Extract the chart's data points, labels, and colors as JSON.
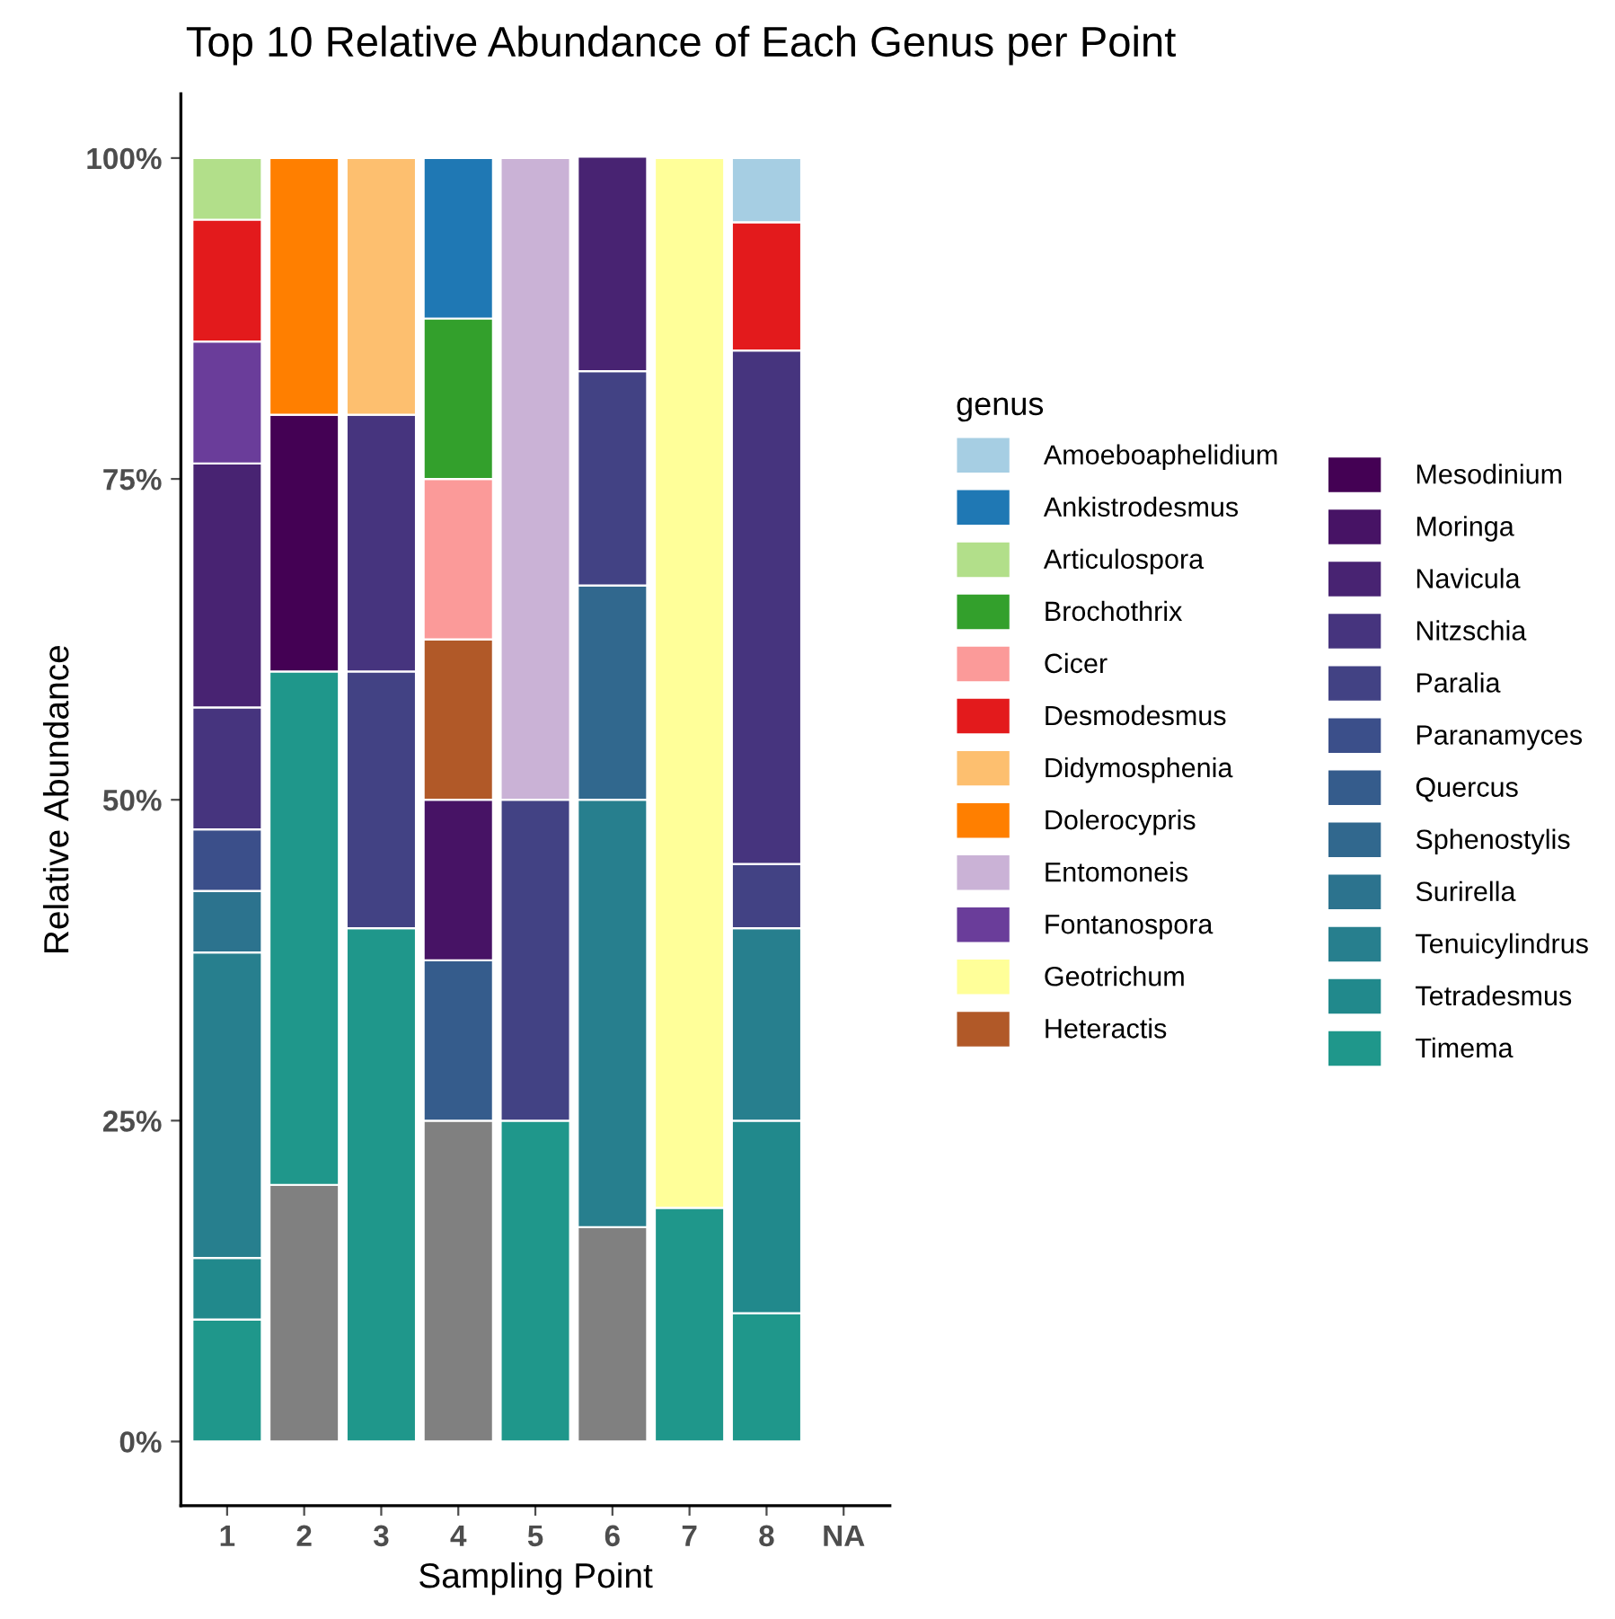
{
  "chart_data": {
    "type": "bar",
    "stacked": true,
    "title": "Top 10 Relative Abundance of Each Genus per Point",
    "xlabel": "Sampling Point",
    "ylabel": "Relative Abundance",
    "legend_title": "genus",
    "legend": "right",
    "grid": false,
    "categories": [
      "1",
      "2",
      "3",
      "4",
      "5",
      "6",
      "7",
      "8",
      "NA"
    ],
    "ylim": [
      -5,
      105
    ],
    "yticks": [
      {
        "value": 0,
        "label": "0%"
      },
      {
        "value": 25,
        "label": "25%"
      },
      {
        "value": 50,
        "label": "50%"
      },
      {
        "value": 75,
        "label": "75%"
      },
      {
        "value": 100,
        "label": "100%"
      }
    ],
    "series": [
      {
        "color": "#808080",
        "values": [
          null,
          20,
          null,
          25,
          null,
          16.7,
          null,
          null,
          null
        ]
      },
      {
        "name": "Timema",
        "color": "#1f978b",
        "values": [
          9.5,
          40,
          40,
          null,
          25,
          null,
          18.2,
          10,
          null
        ]
      },
      {
        "name": "Tetradesmus",
        "color": "#21898c",
        "values": [
          4.8,
          null,
          null,
          null,
          null,
          null,
          null,
          15,
          null
        ]
      },
      {
        "name": "Tenuicylindrus",
        "color": "#277f8e",
        "values": [
          23.8,
          null,
          null,
          null,
          null,
          33.3,
          null,
          15,
          null
        ]
      },
      {
        "name": "Surirella",
        "color": "#2c738e",
        "values": [
          4.8,
          null,
          null,
          null,
          null,
          null,
          null,
          null,
          null
        ]
      },
      {
        "name": "Sphenostylis",
        "color": "#31688e",
        "values": [
          null,
          null,
          null,
          null,
          null,
          16.7,
          null,
          null,
          null
        ]
      },
      {
        "name": "Quercus",
        "color": "#355c8c",
        "values": [
          null,
          null,
          null,
          12.5,
          null,
          null,
          null,
          null,
          null
        ]
      },
      {
        "name": "Paranamyces",
        "color": "#3b4f8a",
        "values": [
          4.8,
          null,
          null,
          null,
          null,
          null,
          null,
          null,
          null
        ]
      },
      {
        "name": "Paralia",
        "color": "#424284",
        "values": [
          null,
          null,
          20,
          null,
          25,
          16.7,
          null,
          5,
          null
        ]
      },
      {
        "name": "Nitzschia",
        "color": "#46347e",
        "values": [
          9.5,
          null,
          20,
          null,
          null,
          null,
          null,
          40,
          null
        ]
      },
      {
        "name": "Navicula",
        "color": "#482372",
        "values": [
          19.0,
          null,
          null,
          null,
          null,
          16.7,
          null,
          null,
          null
        ]
      },
      {
        "name": "Moringa",
        "color": "#471365",
        "values": [
          null,
          null,
          null,
          12.5,
          null,
          null,
          null,
          null,
          null
        ]
      },
      {
        "name": "Mesodinium",
        "color": "#440154",
        "values": [
          null,
          20,
          null,
          null,
          null,
          null,
          null,
          null,
          null
        ]
      },
      {
        "name": "Heteractis",
        "color": "#b15928",
        "values": [
          null,
          null,
          null,
          12.5,
          null,
          null,
          null,
          null,
          null
        ]
      },
      {
        "name": "Geotrichum",
        "color": "#ffff99",
        "values": [
          null,
          null,
          null,
          null,
          null,
          null,
          81.8,
          null,
          null
        ]
      },
      {
        "name": "Fontanospora",
        "color": "#6a3d9a",
        "values": [
          9.5,
          null,
          null,
          null,
          null,
          null,
          null,
          null,
          null
        ]
      },
      {
        "name": "Entomoneis",
        "color": "#cab2d6",
        "values": [
          null,
          null,
          null,
          null,
          50,
          null,
          null,
          null,
          null
        ]
      },
      {
        "name": "Dolerocypris",
        "color": "#ff7f00",
        "values": [
          null,
          20,
          null,
          null,
          null,
          null,
          null,
          null,
          null
        ]
      },
      {
        "name": "Didymosphenia",
        "color": "#fdbf6f",
        "values": [
          null,
          null,
          20,
          null,
          null,
          null,
          null,
          null,
          null
        ]
      },
      {
        "name": "Desmodesmus",
        "color": "#e31a1c",
        "values": [
          9.5,
          null,
          null,
          null,
          null,
          null,
          null,
          10,
          null
        ]
      },
      {
        "name": "Cicer",
        "color": "#fb9a99",
        "values": [
          null,
          null,
          null,
          12.5,
          null,
          null,
          null,
          null,
          null
        ]
      },
      {
        "name": "Brochothrix",
        "color": "#33a02c",
        "values": [
          null,
          null,
          null,
          12.5,
          null,
          null,
          null,
          null,
          null
        ]
      },
      {
        "name": "Articulospora",
        "color": "#b2df8a",
        "values": [
          4.8,
          null,
          null,
          null,
          null,
          null,
          null,
          null,
          null
        ]
      },
      {
        "name": "Ankistrodesmus",
        "color": "#1f78b4",
        "values": [
          null,
          null,
          null,
          12.5,
          null,
          null,
          null,
          null,
          null
        ]
      },
      {
        "name": "Amoeboaphelidium",
        "color": "#a6cee3",
        "values": [
          null,
          null,
          null,
          null,
          null,
          null,
          null,
          5,
          null
        ]
      }
    ]
  }
}
